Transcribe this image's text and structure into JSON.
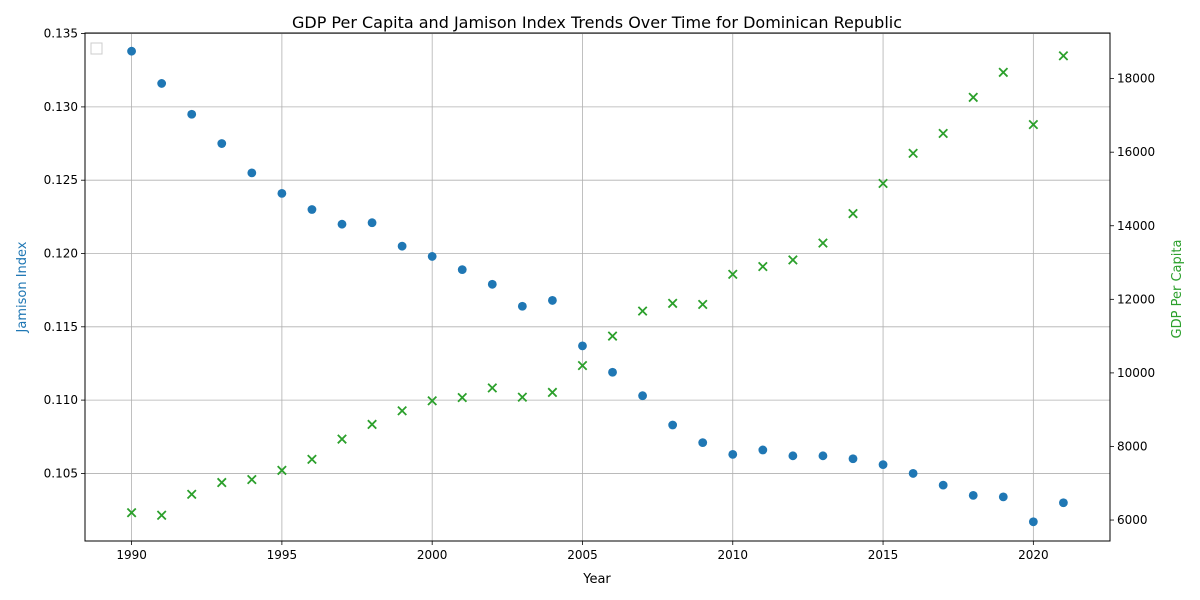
{
  "chart_data": {
    "type": "scatter",
    "title": "GDP Per Capita and Jamison Index Trends Over Time for Dominican Republic",
    "xlabel": "Year",
    "ylabel_left": "Jamison Index",
    "ylabel_right": "GDP Per Capita",
    "xlim": [
      1988.45,
      2022.55
    ],
    "ylim_left": [
      0.10039,
      0.13504
    ],
    "ylim_right": [
      5430,
      19240
    ],
    "x_ticks": [
      1990,
      1995,
      2000,
      2005,
      2010,
      2015,
      2020
    ],
    "y_left_ticks": [
      0.105,
      0.11,
      0.115,
      0.12,
      0.125,
      0.13,
      0.135
    ],
    "y_left_tick_labels": [
      "0.105",
      "0.110",
      "0.115",
      "0.120",
      "0.125",
      "0.130",
      "0.135"
    ],
    "y_right_ticks": [
      6000,
      8000,
      10000,
      12000,
      14000,
      16000,
      18000
    ],
    "grid": true,
    "legend": "top-left (empty)",
    "x": [
      1990,
      1991,
      1992,
      1993,
      1994,
      1995,
      1996,
      1997,
      1998,
      1999,
      2000,
      2001,
      2002,
      2003,
      2004,
      2005,
      2006,
      2007,
      2008,
      2009,
      2010,
      2011,
      2012,
      2013,
      2014,
      2015,
      2016,
      2017,
      2018,
      2019,
      2020,
      2021
    ],
    "series": [
      {
        "axis": "left",
        "marker": "circle",
        "color": "#1f77b4",
        "values": [
          0.1338,
          0.1316,
          0.1295,
          0.1275,
          0.1255,
          0.1241,
          0.123,
          0.122,
          0.1221,
          0.1205,
          0.1198,
          0.1189,
          0.1179,
          0.1164,
          0.1168,
          0.1137,
          0.1119,
          0.1103,
          0.1083,
          0.1071,
          0.1063,
          0.1066,
          0.1062,
          0.1062,
          0.106,
          0.1056,
          0.105,
          0.1042,
          0.1035,
          0.1034,
          0.1017,
          0.103
        ]
      },
      {
        "axis": "right",
        "marker": "x",
        "color": "#2ca02c",
        "values": [
          6200,
          6130,
          6700,
          7020,
          7100,
          7350,
          7650,
          8200,
          8600,
          8970,
          9240,
          9330,
          9590,
          9340,
          9470,
          10200,
          11000,
          11680,
          11890,
          11860,
          12680,
          12890,
          13070,
          13530,
          14330,
          15150,
          15970,
          16510,
          17490,
          18170,
          16750,
          18620
        ]
      }
    ]
  }
}
